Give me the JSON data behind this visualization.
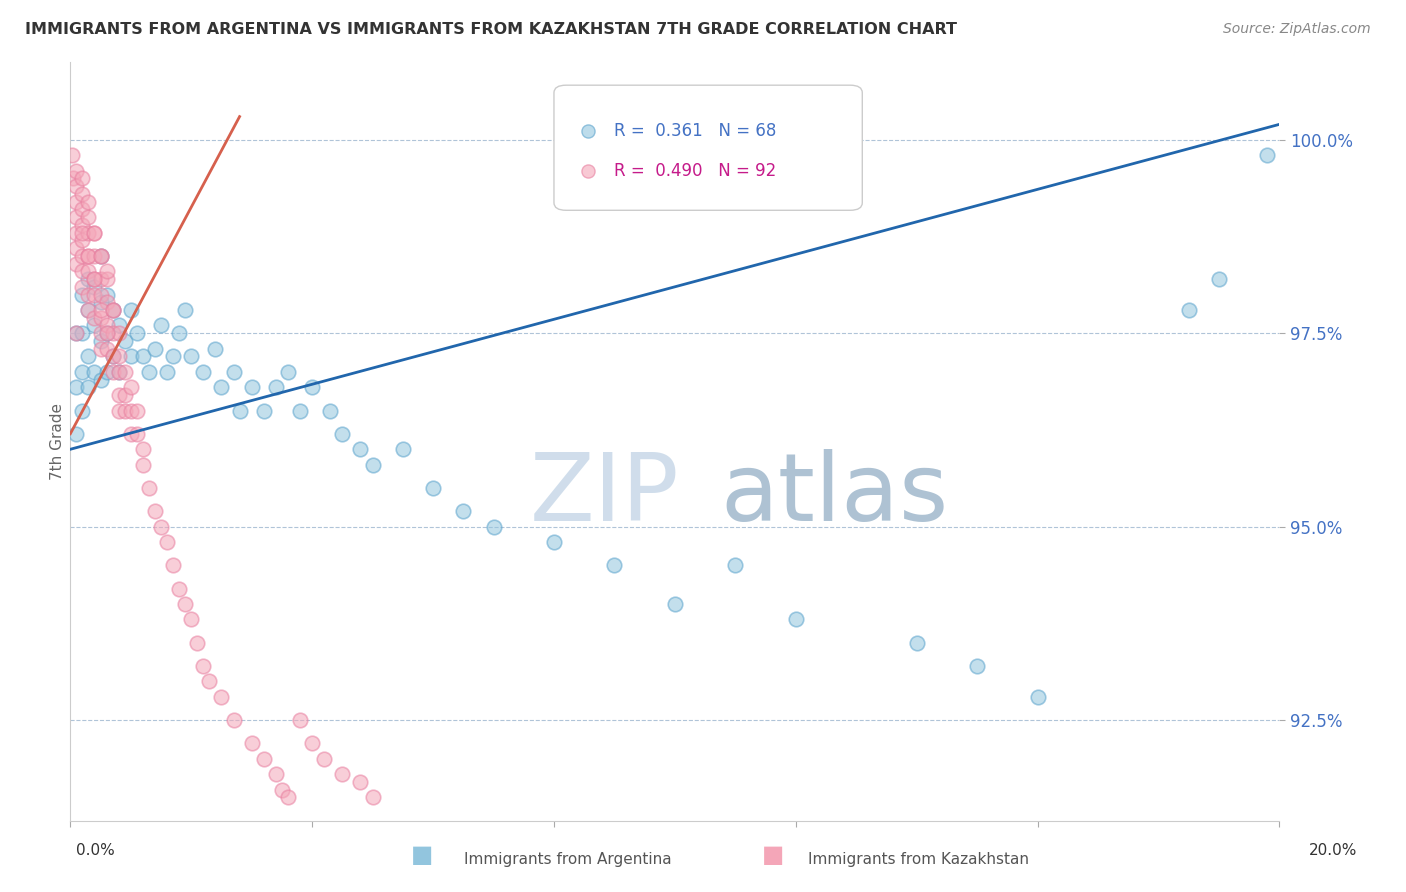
{
  "title": "IMMIGRANTS FROM ARGENTINA VS IMMIGRANTS FROM KAZAKHSTAN 7TH GRADE CORRELATION CHART",
  "source": "Source: ZipAtlas.com",
  "ylabel": "7th Grade",
  "yaxis_ticks": [
    92.5,
    95.0,
    97.5,
    100.0
  ],
  "yaxis_labels": [
    "92.5%",
    "95.0%",
    "97.5%",
    "100.0%"
  ],
  "xlim": [
    0.0,
    0.2
  ],
  "ylim": [
    91.2,
    101.0
  ],
  "legend_blue_r": "0.361",
  "legend_blue_n": "68",
  "legend_pink_r": "0.490",
  "legend_pink_n": "92",
  "blue_color": "#92c5de",
  "pink_color": "#f4a6b8",
  "blue_edge_color": "#5ba3cc",
  "pink_edge_color": "#e87fa0",
  "blue_line_color": "#2166ac",
  "pink_line_color": "#d6604d",
  "watermark_zip": "ZIP",
  "watermark_atlas": "atlas",
  "argentina_x": [
    0.001,
    0.001,
    0.001,
    0.002,
    0.002,
    0.002,
    0.002,
    0.003,
    0.003,
    0.003,
    0.003,
    0.004,
    0.004,
    0.004,
    0.005,
    0.005,
    0.005,
    0.005,
    0.006,
    0.006,
    0.006,
    0.007,
    0.007,
    0.008,
    0.008,
    0.009,
    0.01,
    0.01,
    0.011,
    0.012,
    0.013,
    0.014,
    0.015,
    0.016,
    0.017,
    0.018,
    0.019,
    0.02,
    0.022,
    0.024,
    0.025,
    0.027,
    0.028,
    0.03,
    0.032,
    0.034,
    0.036,
    0.038,
    0.04,
    0.043,
    0.045,
    0.048,
    0.05,
    0.055,
    0.06,
    0.065,
    0.07,
    0.08,
    0.09,
    0.1,
    0.11,
    0.12,
    0.14,
    0.15,
    0.16,
    0.185,
    0.19,
    0.198
  ],
  "argentina_y": [
    97.5,
    96.8,
    96.2,
    98.0,
    97.5,
    97.0,
    96.5,
    98.2,
    97.8,
    97.2,
    96.8,
    98.1,
    97.6,
    97.0,
    98.5,
    97.9,
    97.4,
    96.9,
    98.0,
    97.5,
    97.0,
    97.8,
    97.2,
    97.6,
    97.0,
    97.4,
    97.8,
    97.2,
    97.5,
    97.2,
    97.0,
    97.3,
    97.6,
    97.0,
    97.2,
    97.5,
    97.8,
    97.2,
    97.0,
    97.3,
    96.8,
    97.0,
    96.5,
    96.8,
    96.5,
    96.8,
    97.0,
    96.5,
    96.8,
    96.5,
    96.2,
    96.0,
    95.8,
    96.0,
    95.5,
    95.2,
    95.0,
    94.8,
    94.5,
    94.0,
    94.5,
    93.8,
    93.5,
    93.2,
    92.8,
    97.8,
    98.2,
    99.8
  ],
  "kazakhstan_x": [
    0.0003,
    0.0005,
    0.001,
    0.001,
    0.001,
    0.001,
    0.001,
    0.001,
    0.001,
    0.002,
    0.002,
    0.002,
    0.002,
    0.002,
    0.002,
    0.002,
    0.003,
    0.003,
    0.003,
    0.003,
    0.003,
    0.003,
    0.004,
    0.004,
    0.004,
    0.004,
    0.004,
    0.005,
    0.005,
    0.005,
    0.005,
    0.005,
    0.005,
    0.006,
    0.006,
    0.006,
    0.006,
    0.007,
    0.007,
    0.007,
    0.007,
    0.008,
    0.008,
    0.008,
    0.008,
    0.008,
    0.009,
    0.009,
    0.009,
    0.01,
    0.01,
    0.01,
    0.011,
    0.011,
    0.012,
    0.012,
    0.013,
    0.014,
    0.015,
    0.016,
    0.017,
    0.018,
    0.019,
    0.02,
    0.021,
    0.022,
    0.023,
    0.025,
    0.027,
    0.03,
    0.032,
    0.034,
    0.035,
    0.036,
    0.038,
    0.04,
    0.042,
    0.045,
    0.048,
    0.05,
    0.001,
    0.002,
    0.002,
    0.003,
    0.003,
    0.004,
    0.004,
    0.005,
    0.005,
    0.006,
    0.006,
    0.007
  ],
  "kazakhstan_y": [
    99.8,
    99.5,
    99.6,
    99.4,
    99.2,
    99.0,
    98.8,
    98.6,
    98.4,
    99.3,
    99.1,
    98.9,
    98.7,
    98.5,
    98.3,
    98.1,
    99.0,
    98.8,
    98.5,
    98.3,
    98.0,
    97.8,
    98.8,
    98.5,
    98.2,
    98.0,
    97.7,
    98.5,
    98.2,
    98.0,
    97.7,
    97.5,
    97.3,
    98.2,
    97.9,
    97.6,
    97.3,
    97.8,
    97.5,
    97.2,
    97.0,
    97.5,
    97.2,
    97.0,
    96.7,
    96.5,
    97.0,
    96.7,
    96.5,
    96.8,
    96.5,
    96.2,
    96.5,
    96.2,
    96.0,
    95.8,
    95.5,
    95.2,
    95.0,
    94.8,
    94.5,
    94.2,
    94.0,
    93.8,
    93.5,
    93.2,
    93.0,
    92.8,
    92.5,
    92.2,
    92.0,
    91.8,
    91.6,
    91.5,
    92.5,
    92.2,
    92.0,
    91.8,
    91.7,
    91.5,
    97.5,
    99.5,
    98.8,
    99.2,
    98.5,
    98.8,
    98.2,
    98.5,
    97.8,
    98.3,
    97.5,
    97.8
  ]
}
